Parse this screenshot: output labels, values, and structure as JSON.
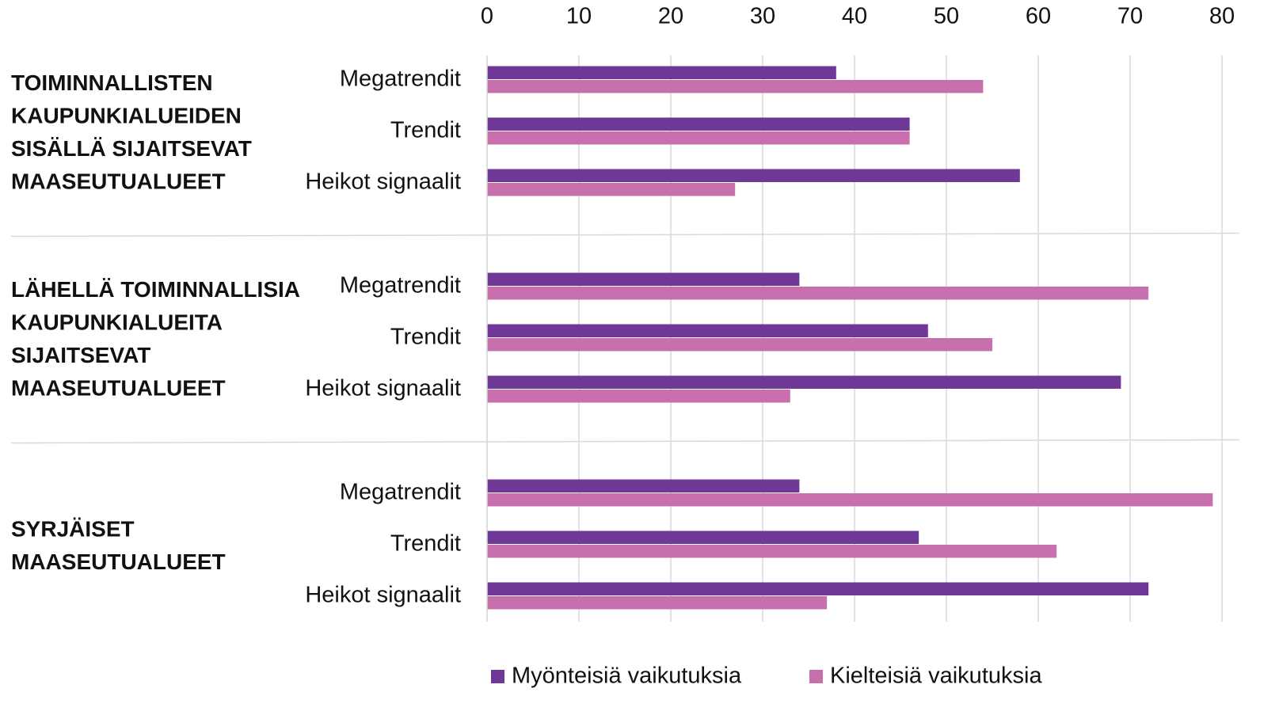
{
  "chart_data": {
    "type": "bar",
    "orientation": "horizontal",
    "groups": [
      "TOIMINNALLISTEN KAUPUNKIALUEIDEN SISÄLLÄ SIJAITSEVAT MAASEUTUALUEET",
      "LÄHELLÄ TOIMINNALLISIA KAUPUNKIALUEITA SIJAITSEVAT MAASEUTUALUEET",
      "SYRJÄISET MAASEUTUALUEET"
    ],
    "categories": [
      "Megatrendit",
      "Trendit",
      "Heikot signaalit",
      "Megatrendit",
      "Trendit",
      "Heikot signaalit",
      "Megatrendit",
      "Trendit",
      "Heikot signaalit"
    ],
    "series": [
      {
        "name": "Myönteisiä vaikutuksia",
        "color": "#703896",
        "values": [
          38,
          46,
          58,
          34,
          48,
          69,
          34,
          47,
          72
        ]
      },
      {
        "name": "Kielteisiä vaikutuksia",
        "color": "#c870ae",
        "values": [
          54,
          46,
          27,
          72,
          55,
          33,
          79,
          62,
          37
        ]
      }
    ],
    "xlim": [
      0,
      80
    ],
    "xticks": [
      0,
      10,
      20,
      30,
      40,
      50,
      60,
      70,
      80
    ],
    "grid": true,
    "legend": "bottom"
  }
}
